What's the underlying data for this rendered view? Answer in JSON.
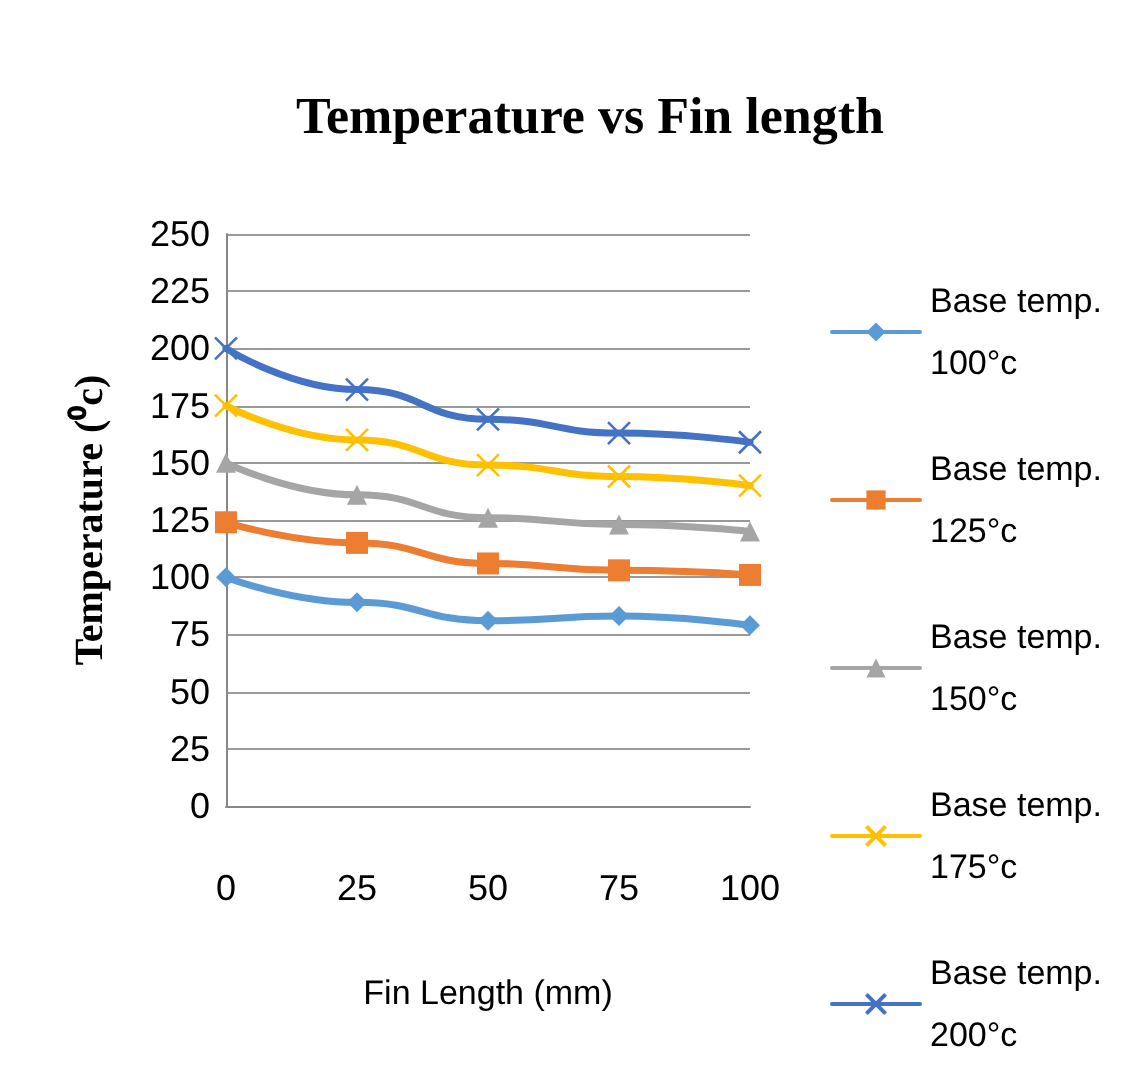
{
  "chart_data": {
    "type": "line",
    "title": "Temperature vs Fin length",
    "xlabel": "Fin Length (mm)",
    "ylabel": "Temperature (⁰c)",
    "categories": [
      "0",
      "25",
      "50",
      "75",
      "100"
    ],
    "ylim": [
      0,
      250
    ],
    "yticks": [
      0,
      25,
      50,
      75,
      100,
      125,
      150,
      175,
      200,
      225,
      250
    ],
    "grid": "y",
    "legend": "right",
    "series": [
      {
        "name": "Base temp. 100°c",
        "color": "#5b9bd5",
        "marker": "diamond",
        "values": [
          100,
          89,
          81,
          83,
          79
        ]
      },
      {
        "name": "Base temp. 125°c",
        "color": "#ed7d31",
        "marker": "square",
        "values": [
          124,
          115,
          106,
          103,
          101
        ]
      },
      {
        "name": "Base temp. 150°c",
        "color": "#a5a5a5",
        "marker": "triangle",
        "values": [
          150,
          136,
          126,
          123,
          120
        ]
      },
      {
        "name": "Base temp. 175°c",
        "color": "#ffc000",
        "marker": "cross",
        "values": [
          175,
          160,
          149,
          144,
          140
        ]
      },
      {
        "name": "Base temp. 200°c",
        "color": "#4472c4",
        "marker": "cross",
        "values": [
          200,
          182,
          169,
          163,
          159
        ]
      }
    ]
  }
}
